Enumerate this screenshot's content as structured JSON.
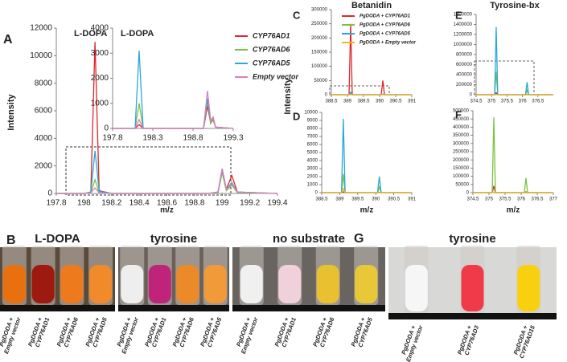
{
  "panel_labels": [
    "A",
    "B",
    "C",
    "D",
    "E",
    "F",
    "G"
  ],
  "chart_data": [
    {
      "type": "line",
      "annotation": "L-DOPA",
      "xlabel": "m/z",
      "ylabel": "Intensity",
      "xlim": [
        197.8,
        199.4
      ],
      "xticks": [
        197.8,
        198,
        198.2,
        198.4,
        198.6,
        198.8,
        199,
        199.2,
        199.4
      ],
      "ylim": [
        0,
        12000
      ],
      "yticks": [
        0,
        2000,
        4000,
        6000,
        8000,
        10000,
        12000
      ],
      "x": [
        197.8,
        198.0,
        198.05,
        198.08,
        198.11,
        198.2,
        198.9,
        198.97,
        199.0,
        199.03,
        199.07,
        199.11,
        199.4
      ],
      "series": [
        {
          "name": "CYP76AD1",
          "color": "#e0262b",
          "values": [
            0,
            0,
            100,
            11000,
            200,
            0,
            0,
            100,
            1800,
            300,
            1300,
            100,
            0
          ]
        },
        {
          "name": "CYP76AD6",
          "color": "#7cc242",
          "values": [
            0,
            0,
            50,
            1000,
            50,
            0,
            0,
            50,
            1500,
            200,
            600,
            50,
            0
          ]
        },
        {
          "name": "CYP76AD5",
          "color": "#2aa8d8",
          "values": [
            0,
            0,
            100,
            3100,
            150,
            0,
            0,
            100,
            1700,
            300,
            800,
            100,
            0
          ]
        },
        {
          "name": "Empty vector",
          "color": "#d77fc0",
          "values": [
            0,
            0,
            50,
            400,
            50,
            0,
            0,
            100,
            1800,
            300,
            700,
            100,
            0
          ]
        }
      ]
    },
    {
      "type": "line",
      "annotation": "L-DOPA",
      "xlim": [
        197.8,
        199.3
      ],
      "xticks": [
        197.8,
        198.3,
        198.8,
        199.3
      ],
      "ylim": [
        0,
        4000
      ],
      "yticks": [
        0,
        1000,
        2000,
        3000,
        4000
      ],
      "x": [
        197.8,
        198.08,
        198.13,
        198.18,
        198.93,
        198.98,
        199.02,
        199.05,
        199.08,
        199.3
      ],
      "series": [
        {
          "color": "#e0262b",
          "values": [
            0,
            0,
            150,
            0,
            0,
            900,
            200,
            350,
            50,
            0
          ]
        },
        {
          "color": "#7cc242",
          "values": [
            0,
            0,
            1000,
            0,
            0,
            1100,
            200,
            400,
            50,
            0
          ]
        },
        {
          "color": "#2aa8d8",
          "values": [
            0,
            0,
            3100,
            0,
            0,
            1200,
            300,
            450,
            50,
            0
          ]
        },
        {
          "color": "#d77fc0",
          "values": [
            0,
            0,
            350,
            0,
            0,
            1500,
            300,
            450,
            50,
            0
          ]
        }
      ]
    },
    {
      "type": "line",
      "title": "Betanidin",
      "ylabel": "Intensity",
      "xlim": [
        388.5,
        391
      ],
      "xticks": [
        388.5,
        389,
        389.5,
        390,
        390.5,
        391
      ],
      "ylim": [
        0,
        300000
      ],
      "yticks": [
        0,
        50000,
        100000,
        150000,
        200000,
        250000,
        300000
      ],
      "x": [
        388.5,
        389.05,
        389.1,
        389.15,
        390.05,
        390.1,
        390.15,
        391
      ],
      "series": [
        {
          "name": "PgDODA + CYP76AD1",
          "color": "#e0262b",
          "values": [
            0,
            0,
            250000,
            0,
            0,
            50000,
            0,
            0
          ]
        },
        {
          "name": "PgDODA + CYP76AD6",
          "color": "#7cc242",
          "values": [
            0,
            0,
            2300,
            0,
            0,
            700,
            0,
            0
          ]
        },
        {
          "name": "PgDODA + CYP76AD5",
          "color": "#2aa8d8",
          "values": [
            0,
            0,
            9200,
            0,
            0,
            2000,
            0,
            0
          ]
        },
        {
          "name": "PgDODA + Empty vector",
          "color": "#f2b51c",
          "values": [
            0,
            0,
            500,
            0,
            0,
            0,
            0,
            0
          ]
        }
      ]
    },
    {
      "type": "line",
      "xlabel": "m/z",
      "xlim": [
        388.5,
        391
      ],
      "xticks": [
        388.5,
        389,
        389.5,
        390,
        390.5,
        391
      ],
      "ylim": [
        0,
        10000
      ],
      "yticks": [
        0,
        1000,
        2000,
        3000,
        4000,
        5000,
        6000,
        7000,
        8000,
        9000,
        10000
      ],
      "x": [
        388.5,
        389.05,
        389.1,
        389.15,
        390.05,
        390.1,
        390.15,
        391
      ],
      "series": [
        {
          "color": "#e0262b",
          "values": [
            0,
            0,
            100,
            0,
            0,
            50,
            0,
            0
          ]
        },
        {
          "color": "#7cc242",
          "values": [
            0,
            0,
            2300,
            0,
            0,
            700,
            0,
            0
          ]
        },
        {
          "color": "#2aa8d8",
          "values": [
            0,
            0,
            9200,
            0,
            0,
            2000,
            0,
            0
          ]
        },
        {
          "color": "#f2b51c",
          "values": [
            0,
            0,
            500,
            0,
            0,
            0,
            0,
            0
          ]
        }
      ]
    },
    {
      "type": "line",
      "title": "Tyrosine-bx",
      "xlim": [
        374.5,
        377
      ],
      "xticks": [
        374.5,
        375,
        375.5,
        376,
        376.5
      ],
      "ylim": [
        0,
        1600000
      ],
      "yticks": [
        0,
        200000,
        400000,
        600000,
        800000,
        1000000,
        1200000,
        1400000,
        1600000
      ],
      "x": [
        374.5,
        375.1,
        375.15,
        375.2,
        376.1,
        376.15,
        376.2,
        377
      ],
      "series": [
        {
          "color": "#e0262b",
          "values": [
            0,
            0,
            40000,
            0,
            0,
            5000,
            0,
            0
          ]
        },
        {
          "color": "#7cc242",
          "values": [
            0,
            0,
            460000,
            0,
            0,
            90000,
            0,
            0
          ]
        },
        {
          "color": "#2aa8d8",
          "values": [
            0,
            0,
            1350000,
            0,
            0,
            250000,
            0,
            0
          ]
        },
        {
          "color": "#f2b51c",
          "values": [
            0,
            0,
            5000,
            0,
            0,
            0,
            0,
            0
          ]
        }
      ]
    },
    {
      "type": "line",
      "xlabel": "m/z",
      "xlim": [
        374.5,
        377
      ],
      "xticks": [
        374.5,
        375,
        375.5,
        376,
        376.5,
        377
      ],
      "ylim": [
        0,
        500000
      ],
      "yticks": [
        0,
        50000,
        100000,
        150000,
        200000,
        250000,
        300000,
        350000,
        400000,
        450000,
        500000
      ],
      "x": [
        374.5,
        375.1,
        375.15,
        375.2,
        376.1,
        376.15,
        376.2,
        377
      ],
      "series": [
        {
          "color": "#e0262b",
          "values": [
            0,
            0,
            40000,
            0,
            0,
            5000,
            0,
            0
          ]
        },
        {
          "color": "#7cc242",
          "values": [
            0,
            0,
            460000,
            0,
            0,
            90000,
            0,
            0
          ]
        },
        {
          "color": "#2aa8d8",
          "values": [
            0,
            0,
            3000,
            0,
            0,
            1000,
            0,
            0
          ]
        },
        {
          "color": "#f2b51c",
          "values": [
            0,
            0,
            2000,
            0,
            0,
            0,
            0,
            0
          ]
        }
      ]
    }
  ],
  "photos": [
    {
      "title": "L-DOPA",
      "tubes": [
        {
          "color": "#e8700f",
          "label": [
            "PgDODA +",
            "Empty vector"
          ]
        },
        {
          "color": "#9e1a10",
          "label": [
            "PgDODA +",
            "CYP76AD1"
          ]
        },
        {
          "color": "#ee7a1e",
          "label": [
            "PgDODA +",
            "CYP76AD6"
          ]
        },
        {
          "color": "#f08a2a",
          "label": [
            "PgDODA +",
            "CYP76AD5"
          ]
        }
      ]
    },
    {
      "title": "tyrosine",
      "tubes": [
        {
          "color": "#eeeeee",
          "label": [
            "PgDODA +",
            "Empty vector"
          ]
        },
        {
          "color": "#c0247a",
          "label": [
            "PgDODA +",
            "CYP76AD1"
          ]
        },
        {
          "color": "#ec8a2a",
          "label": [
            "PgDODA +",
            "CYP76AD6"
          ]
        },
        {
          "color": "#f09a3a",
          "label": [
            "PgDODA +",
            "CYP76AD5"
          ]
        }
      ]
    },
    {
      "title": "no substrate",
      "tubes": [
        {
          "color": "#f0f0f0",
          "label": [
            "PgDODA +",
            "Empty vector"
          ]
        },
        {
          "color": "#f0d0da",
          "label": [
            "PgDODA +",
            "CYP76AD1"
          ]
        },
        {
          "color": "#e8c030",
          "label": [
            "PgDODA +",
            "CYP76AD6"
          ]
        },
        {
          "color": "#e8c838",
          "label": [
            "PgDODA +",
            "CYP76AD5"
          ]
        }
      ]
    },
    {
      "title": "tyrosine",
      "tubes": [
        {
          "color": "#f6f6f6",
          "label": [
            "PgDODA +",
            "Empty vector"
          ]
        },
        {
          "color": "#f03a4a",
          "label": [
            "PgDODA +",
            "CYP76AD3"
          ]
        },
        {
          "color": "#f8d010",
          "label": [
            "PgDODA +",
            "CYP76AD15"
          ]
        }
      ]
    }
  ]
}
